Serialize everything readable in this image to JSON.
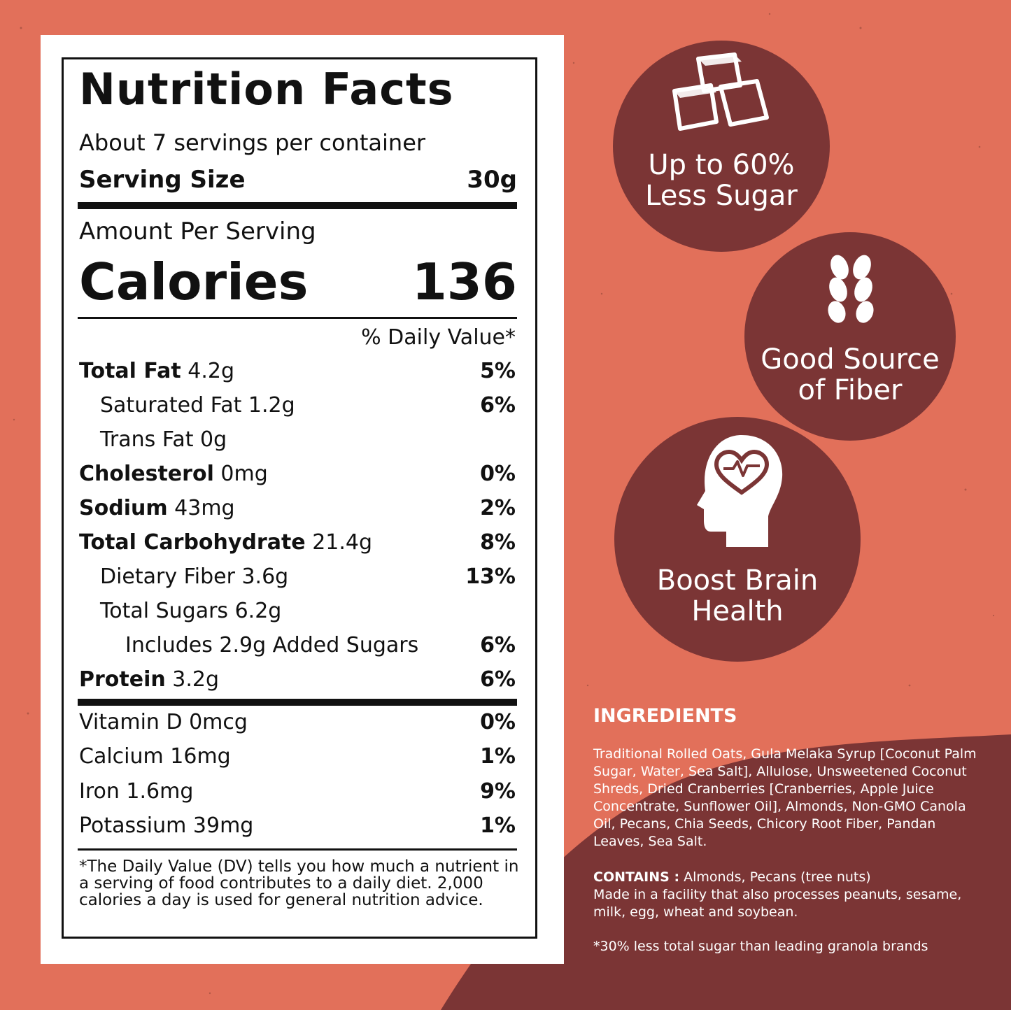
{
  "colors": {
    "background": "#e2705a",
    "badge": "#7b3535",
    "panel": "#ffffff"
  },
  "nutrition": {
    "title": "Nutrition Facts",
    "servings": "About 7 servings per container",
    "serving_size_label": "Serving Size",
    "serving_size_value": "30g",
    "amount_per_serving": "Amount Per Serving",
    "calories_label": "Calories",
    "calories_value": "136",
    "dv_header": "% Daily Value*",
    "rows": [
      {
        "name": "Total Fat",
        "amount": "4.2g",
        "dv": "5%"
      },
      {
        "name": "Saturated Fat 1.2g",
        "amount": "",
        "dv": "6%"
      },
      {
        "name": "Trans Fat 0g",
        "amount": "",
        "dv": ""
      },
      {
        "name": "Cholesterol",
        "amount": "0mg",
        "dv": "0%"
      },
      {
        "name": "Sodium",
        "amount": "43mg",
        "dv": "2%"
      },
      {
        "name": "Total Carbohydrate",
        "amount": "21.4g",
        "dv": "8%"
      },
      {
        "name": "Dietary Fiber 3.6g",
        "amount": "",
        "dv": "13%"
      },
      {
        "name": "Total Sugars 6.2g",
        "amount": "",
        "dv": ""
      },
      {
        "name": "Includes 2.9g Added Sugars",
        "amount": "",
        "dv": "6%"
      },
      {
        "name": "Protein",
        "amount": "3.2g",
        "dv": "6%"
      }
    ],
    "vitamins": [
      {
        "name": "Vitamin D 0mcg",
        "dv": "0%"
      },
      {
        "name": "Calcium 16mg",
        "dv": "1%"
      },
      {
        "name": "Iron 1.6mg",
        "dv": "9%"
      },
      {
        "name": "Potassium 39mg",
        "dv": "1%"
      }
    ],
    "footnote": "*The Daily Value (DV) tells you how much a nutrient in a serving of food contributes to a daily diet. 2,000 calories a day is used for general nutrition advice."
  },
  "badges": [
    {
      "line1": "Up to 60%",
      "line2": "Less Sugar",
      "icon": "sugar-cubes-icon"
    },
    {
      "line1": "Good Source",
      "line2": "of Fiber",
      "icon": "wheat-icon"
    },
    {
      "line1": "Boost Brain",
      "line2": "Health",
      "icon": "brain-heart-icon"
    }
  ],
  "ingredients": {
    "heading": "INGREDIENTS",
    "text": "Traditional Rolled Oats, Gula Melaka Syrup [Coconut Palm Sugar, Water, Sea Salt], Allulose, Unsweetened Coconut Shreds, Dried Cranberries [Cranberries, Apple Juice Concentrate, Sunflower Oil], Almonds, Non-GMO Canola Oil, Pecans, Chia Seeds, Chicory Root Fiber, Pandan Leaves, Sea Salt.",
    "contains_label": "CONTAINS :",
    "contains_text": "Almonds, Pecans (tree nuts)",
    "facility": "Made in a facility that also processes peanuts, sesame, milk, egg, wheat and soybean.",
    "claim": "*30% less total sugar than leading granola brands"
  }
}
